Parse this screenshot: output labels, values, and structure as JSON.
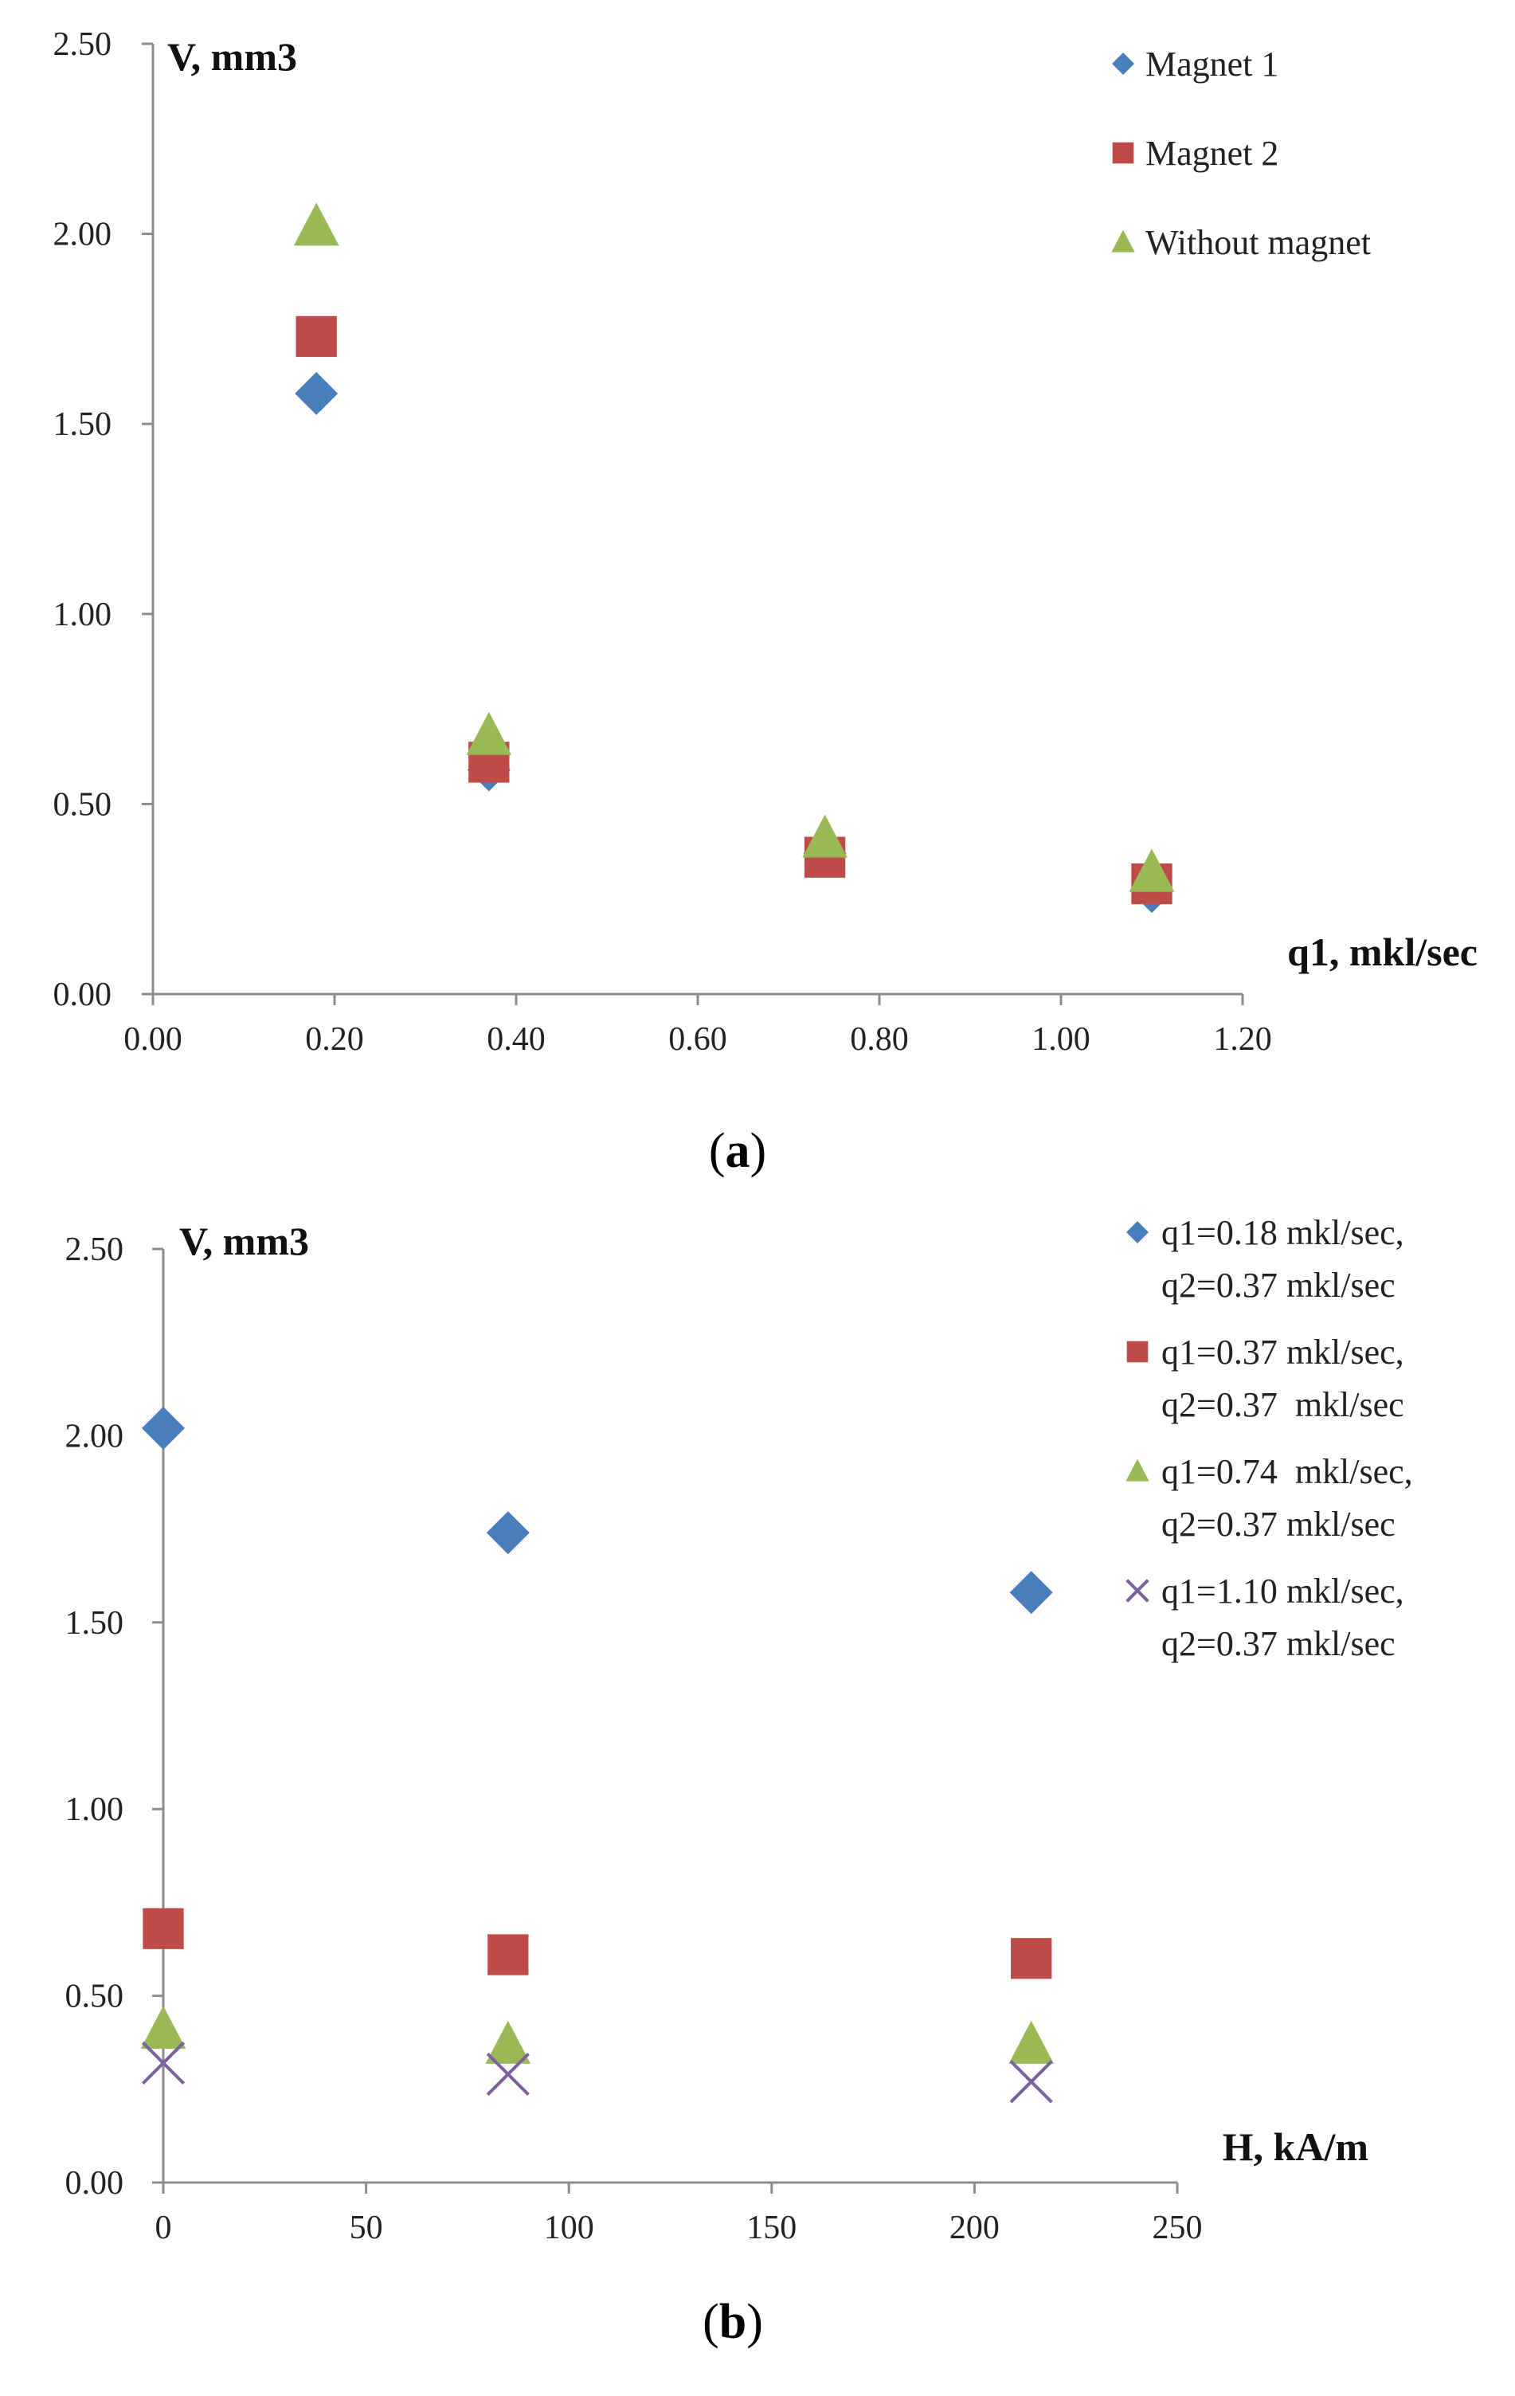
{
  "chart_data": [
    {
      "type": "scatter",
      "panel_label": "a",
      "xlabel": "q1, mkl/sec",
      "ylabel": "V, mm3",
      "xlim": [
        0,
        1.2
      ],
      "ylim": [
        0,
        2.5
      ],
      "x_ticks": [
        "0.00",
        "0.20",
        "0.40",
        "0.60",
        "0.80",
        "1.00",
        "1.20"
      ],
      "y_ticks": [
        "0.00",
        "0.50",
        "1.00",
        "1.50",
        "2.00",
        "2.50"
      ],
      "legend_position": "top-right",
      "series": [
        {
          "name": "Magnet 1",
          "marker": "diamond",
          "color": "#4a7ebb",
          "x": [
            0.18,
            0.37,
            0.74,
            1.1
          ],
          "y": [
            1.58,
            0.59,
            0.37,
            0.27
          ]
        },
        {
          "name": "Magnet 2",
          "marker": "square",
          "color": "#be4b48",
          "x": [
            0.18,
            0.37,
            0.74,
            1.1
          ],
          "y": [
            1.73,
            0.61,
            0.36,
            0.29
          ]
        },
        {
          "name": "Without magnet",
          "marker": "triangle",
          "color": "#98b954",
          "x": [
            0.18,
            0.37,
            0.74,
            1.1
          ],
          "y": [
            2.02,
            0.68,
            0.41,
            0.32
          ]
        }
      ]
    },
    {
      "type": "scatter",
      "panel_label": "b",
      "xlabel": "H, kA/m",
      "ylabel": "V, mm3",
      "xlim": [
        0,
        250
      ],
      "ylim": [
        0,
        2.5
      ],
      "x_ticks": [
        "0",
        "50",
        "100",
        "150",
        "200",
        "250"
      ],
      "y_ticks": [
        "0.00",
        "0.50",
        "1.00",
        "1.50",
        "2.00",
        "2.50"
      ],
      "legend_position": "top-right",
      "series": [
        {
          "name_lines": [
            "q1=0.18 mkl/sec,",
            "q2=0.37 mkl/sec"
          ],
          "marker": "diamond",
          "color": "#4a7ebb",
          "x": [
            0,
            85,
            214
          ],
          "y": [
            2.02,
            1.74,
            1.58
          ]
        },
        {
          "name_lines": [
            "q1=0.37 mkl/sec,",
            "q2=0.37  mkl/sec"
          ],
          "marker": "square",
          "color": "#be4b48",
          "x": [
            0,
            85,
            214
          ],
          "y": [
            0.68,
            0.61,
            0.6
          ]
        },
        {
          "name_lines": [
            "q1=0.74  mkl/sec,",
            "q2=0.37 mkl/sec"
          ],
          "marker": "triangle",
          "color": "#98b954",
          "x": [
            0,
            85,
            214
          ],
          "y": [
            0.41,
            0.37,
            0.37
          ]
        },
        {
          "name_lines": [
            "q1=1.10 mkl/sec,",
            "q2=0.37 mkl/sec"
          ],
          "marker": "x",
          "color": "#7d60a0",
          "x": [
            0,
            85,
            214
          ],
          "y": [
            0.32,
            0.29,
            0.27
          ]
        }
      ]
    }
  ]
}
